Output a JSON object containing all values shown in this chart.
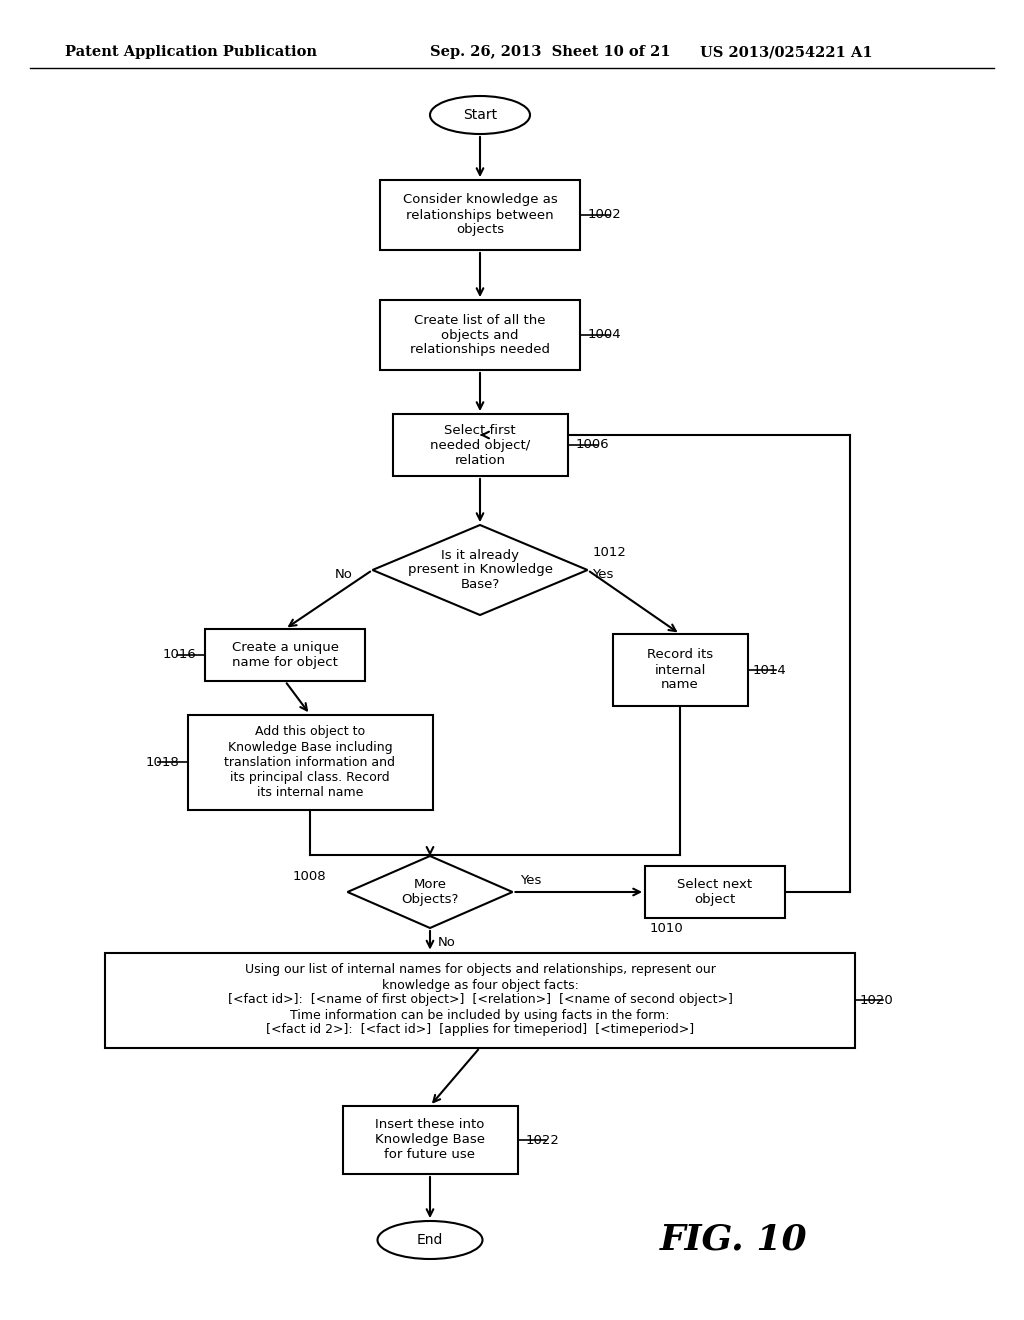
{
  "bg_color": "#ffffff",
  "line_color": "#000000",
  "header_left": "Patent Application Publication",
  "header_center": "Sep. 26, 2013  Sheet 10 of 21",
  "header_right": "US 2013/0254221 A1",
  "fig_label": "FIG. 10"
}
